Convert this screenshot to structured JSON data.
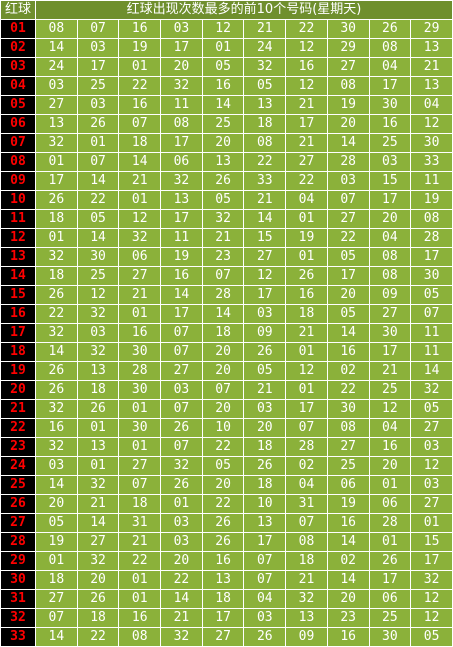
{
  "header": {
    "col_label": "红球",
    "title": "红球出现次数最多的前10个号码(星期天)"
  },
  "rows": [
    {
      "label": "01",
      "values": [
        "08",
        "07",
        "16",
        "03",
        "12",
        "21",
        "22",
        "30",
        "26",
        "29"
      ]
    },
    {
      "label": "02",
      "values": [
        "14",
        "03",
        "19",
        "17",
        "01",
        "24",
        "12",
        "29",
        "08",
        "13"
      ]
    },
    {
      "label": "03",
      "values": [
        "24",
        "17",
        "01",
        "20",
        "05",
        "32",
        "16",
        "27",
        "04",
        "21"
      ]
    },
    {
      "label": "04",
      "values": [
        "03",
        "25",
        "22",
        "32",
        "16",
        "05",
        "12",
        "08",
        "17",
        "13"
      ]
    },
    {
      "label": "05",
      "values": [
        "27",
        "03",
        "16",
        "11",
        "14",
        "13",
        "21",
        "19",
        "30",
        "04"
      ]
    },
    {
      "label": "06",
      "values": [
        "13",
        "26",
        "07",
        "08",
        "25",
        "18",
        "17",
        "20",
        "16",
        "12"
      ]
    },
    {
      "label": "07",
      "values": [
        "32",
        "01",
        "18",
        "17",
        "20",
        "08",
        "21",
        "14",
        "25",
        "30"
      ]
    },
    {
      "label": "08",
      "values": [
        "01",
        "07",
        "14",
        "06",
        "13",
        "22",
        "27",
        "28",
        "03",
        "33"
      ]
    },
    {
      "label": "09",
      "values": [
        "17",
        "14",
        "21",
        "32",
        "26",
        "33",
        "22",
        "03",
        "15",
        "11"
      ]
    },
    {
      "label": "10",
      "values": [
        "26",
        "22",
        "01",
        "13",
        "05",
        "21",
        "04",
        "07",
        "17",
        "19"
      ]
    },
    {
      "label": "11",
      "values": [
        "18",
        "05",
        "12",
        "17",
        "32",
        "14",
        "01",
        "27",
        "20",
        "08"
      ]
    },
    {
      "label": "12",
      "values": [
        "01",
        "14",
        "32",
        "11",
        "21",
        "15",
        "19",
        "22",
        "04",
        "28"
      ]
    },
    {
      "label": "13",
      "values": [
        "32",
        "30",
        "06",
        "19",
        "23",
        "27",
        "01",
        "05",
        "08",
        "17"
      ]
    },
    {
      "label": "14",
      "values": [
        "18",
        "25",
        "27",
        "16",
        "07",
        "12",
        "26",
        "17",
        "08",
        "30"
      ]
    },
    {
      "label": "15",
      "values": [
        "26",
        "12",
        "21",
        "14",
        "28",
        "17",
        "16",
        "20",
        "09",
        "05"
      ]
    },
    {
      "label": "16",
      "values": [
        "22",
        "32",
        "01",
        "17",
        "14",
        "03",
        "18",
        "05",
        "27",
        "07"
      ]
    },
    {
      "label": "17",
      "values": [
        "32",
        "03",
        "16",
        "07",
        "18",
        "09",
        "21",
        "14",
        "30",
        "11"
      ]
    },
    {
      "label": "18",
      "values": [
        "14",
        "32",
        "30",
        "07",
        "20",
        "26",
        "01",
        "16",
        "17",
        "11"
      ]
    },
    {
      "label": "19",
      "values": [
        "26",
        "13",
        "28",
        "27",
        "20",
        "05",
        "12",
        "02",
        "21",
        "14"
      ]
    },
    {
      "label": "20",
      "values": [
        "26",
        "18",
        "30",
        "03",
        "07",
        "21",
        "01",
        "22",
        "25",
        "32"
      ]
    },
    {
      "label": "21",
      "values": [
        "32",
        "26",
        "01",
        "07",
        "20",
        "03",
        "17",
        "30",
        "12",
        "05"
      ]
    },
    {
      "label": "22",
      "values": [
        "16",
        "01",
        "30",
        "26",
        "10",
        "20",
        "07",
        "08",
        "04",
        "27"
      ]
    },
    {
      "label": "23",
      "values": [
        "32",
        "13",
        "01",
        "07",
        "22",
        "18",
        "28",
        "27",
        "16",
        "03"
      ]
    },
    {
      "label": "24",
      "values": [
        "03",
        "01",
        "27",
        "32",
        "05",
        "26",
        "02",
        "25",
        "20",
        "12"
      ]
    },
    {
      "label": "25",
      "values": [
        "14",
        "32",
        "07",
        "26",
        "20",
        "18",
        "04",
        "06",
        "01",
        "03"
      ]
    },
    {
      "label": "26",
      "values": [
        "20",
        "21",
        "18",
        "01",
        "22",
        "10",
        "31",
        "19",
        "06",
        "27"
      ]
    },
    {
      "label": "27",
      "values": [
        "05",
        "14",
        "31",
        "03",
        "26",
        "13",
        "07",
        "16",
        "28",
        "01"
      ]
    },
    {
      "label": "28",
      "values": [
        "19",
        "27",
        "21",
        "03",
        "26",
        "17",
        "08",
        "14",
        "01",
        "15"
      ]
    },
    {
      "label": "29",
      "values": [
        "01",
        "32",
        "22",
        "20",
        "16",
        "07",
        "18",
        "02",
        "26",
        "17"
      ]
    },
    {
      "label": "30",
      "values": [
        "18",
        "20",
        "01",
        "22",
        "13",
        "07",
        "21",
        "14",
        "17",
        "32"
      ]
    },
    {
      "label": "31",
      "values": [
        "27",
        "26",
        "01",
        "14",
        "18",
        "04",
        "32",
        "20",
        "06",
        "12"
      ]
    },
    {
      "label": "32",
      "values": [
        "07",
        "18",
        "16",
        "21",
        "17",
        "03",
        "13",
        "23",
        "25",
        "12"
      ]
    },
    {
      "label": "33",
      "values": [
        "14",
        "22",
        "08",
        "32",
        "27",
        "26",
        "09",
        "16",
        "30",
        "05"
      ]
    }
  ]
}
